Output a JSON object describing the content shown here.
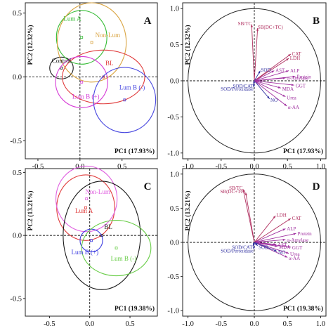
{
  "chart_data": [
    {
      "panel": "A",
      "type": "scatter",
      "xlabel": "PC1 (17.93%)",
      "ylabel": "PC2 (12.32%)",
      "xlim": [
        -0.65,
        0.92
      ],
      "ylim": [
        -0.64,
        0.58
      ],
      "xticks": [
        "-0.5",
        "0.0",
        "0.5"
      ],
      "xtick_values": [
        -0.5,
        0.0,
        0.5
      ],
      "yticks": [
        "-0.5",
        "0.0",
        "0.5"
      ],
      "ytick_values": [
        -0.5,
        0.0,
        0.5
      ],
      "groups": [
        {
          "name": "Control",
          "color": "#1a1a1a",
          "centroid": [
            -0.22,
            0.07
          ],
          "radii": [
            0.14,
            0.085
          ]
        },
        {
          "name": "Lum A",
          "color": "#33bb33",
          "centroid": [
            0.02,
            0.31
          ],
          "radii": [
            0.3,
            0.21
          ]
        },
        {
          "name": "Non-Lum",
          "color": "#d9a441",
          "centroid": [
            0.14,
            0.27
          ],
          "radii": [
            0.41,
            0.31
          ]
        },
        {
          "name": "BL",
          "color": "#e03c3c",
          "centroid": [
            0.28,
            0.0
          ],
          "radii": [
            0.49,
            0.21
          ]
        },
        {
          "name": "Lum B (+)",
          "color": "#d63cd6",
          "centroid": [
            0.02,
            -0.04
          ],
          "radii": [
            0.31,
            0.2
          ]
        },
        {
          "name": "Lum B (-)",
          "color": "#4a4ae0",
          "centroid": [
            0.53,
            -0.18
          ],
          "radii": [
            0.37,
            0.255
          ]
        }
      ],
      "labels": [
        {
          "text": "Lum A",
          "x": -0.09,
          "y": 0.44,
          "color": "#33bb33"
        },
        {
          "text": "Non-Lum",
          "x": 0.33,
          "y": 0.31,
          "color": "#d9a441"
        },
        {
          "text": "Control",
          "x": -0.22,
          "y": 0.11,
          "color": "#1a1a1a"
        },
        {
          "text": "BL",
          "x": 0.35,
          "y": 0.09,
          "color": "#e03c3c"
        },
        {
          "text": "Lum B (-)",
          "x": 0.62,
          "y": -0.1,
          "color": "#4a4ae0"
        },
        {
          "text": "Lum B (+)",
          "x": 0.07,
          "y": -0.17,
          "color": "#d63cd6"
        }
      ]
    },
    {
      "panel": "B",
      "type": "biplot",
      "xlabel": "PC1 (17.93%)",
      "ylabel": "PC2 (12.32%)",
      "xlim": [
        -1.08,
        1.08
      ],
      "ylim": [
        -1.08,
        1.08
      ],
      "xticks": [
        "-1.0",
        "-0.5",
        "0.0",
        "0.5",
        "1.0"
      ],
      "xtick_values": [
        -1.0,
        -0.5,
        0.0,
        0.5,
        1.0
      ],
      "yticks": [
        "-1.0",
        "-0.5",
        "0.0",
        "0.5",
        "1.0"
      ],
      "ytick_values": [
        -1.0,
        -0.5,
        0.0,
        0.5,
        1.0
      ],
      "circle_radius": 1.0,
      "vectors": [
        {
          "label": "SB/TC",
          "x": -0.04,
          "y": 0.78,
          "color": "#b03060"
        },
        {
          "label": "SB(DC+TC)",
          "x": 0.05,
          "y": 0.73,
          "color": "#b03060"
        },
        {
          "label": "CAT",
          "x": 0.55,
          "y": 0.37,
          "color": "#b03060"
        },
        {
          "label": "LDH",
          "x": 0.52,
          "y": 0.31,
          "color": "#b03060"
        },
        {
          "label": "ALP",
          "x": 0.52,
          "y": 0.14,
          "color": "#a030a0"
        },
        {
          "label": "Protein",
          "x": 0.62,
          "y": 0.06,
          "color": "#a030a0"
        },
        {
          "label": "α-Amylase",
          "x": 0.47,
          "y": 0.04,
          "color": "#a030a0"
        },
        {
          "label": "AST",
          "x": 0.3,
          "y": 0.14,
          "color": "#a030a0"
        },
        {
          "label": "SOD",
          "x": 0.09,
          "y": 0.14,
          "color": "#3030a0"
        },
        {
          "label": "GGT",
          "x": 0.6,
          "y": -0.06,
          "color": "#a030a0"
        },
        {
          "label": "MDA",
          "x": 0.4,
          "y": -0.1,
          "color": "#a030a0"
        },
        {
          "label": "SOD/CAT",
          "x": -0.01,
          "y": -0.05,
          "color": "#3030a0"
        },
        {
          "label": "SOD/Peroxidase",
          "x": -0.01,
          "y": -0.09,
          "color": "#3030a0"
        },
        {
          "label": "NO",
          "x": 0.23,
          "y": -0.25,
          "color": "#3030a0"
        },
        {
          "label": "Urea",
          "x": 0.47,
          "y": -0.22,
          "color": "#a030a0"
        },
        {
          "label": "α-AA",
          "x": 0.49,
          "y": -0.35,
          "color": "#a030a0"
        }
      ]
    },
    {
      "panel": "C",
      "type": "scatter",
      "xlabel": "PC1 (19.38%)",
      "ylabel": "PC2 (13.21%)",
      "xlim": [
        -0.8,
        0.84
      ],
      "ylim": [
        -0.64,
        0.53
      ],
      "xticks": [
        "-0.5",
        "0.0",
        "0.5"
      ],
      "xtick_values": [
        -0.5,
        0.0,
        0.5
      ],
      "yticks": [
        "-0.5",
        "0.0",
        "0.5"
      ],
      "ytick_values": [
        -0.5,
        0.0,
        0.5
      ],
      "groups": [
        {
          "name": "Lum A",
          "color": "#e03c3c",
          "centroid": [
            -0.05,
            0.22
          ],
          "radii": [
            0.36,
            0.26
          ]
        },
        {
          "name": "Non-Lum",
          "color": "#e060e0",
          "centroid": [
            -0.04,
            0.29
          ],
          "radii": [
            0.38,
            0.26
          ]
        },
        {
          "name": "BL",
          "color": "#1a1a1a",
          "centroid": [
            0.15,
            0.0
          ],
          "radii": [
            0.48,
            0.43
          ]
        },
        {
          "name": "Lum B (+)",
          "color": "#3c3ce0",
          "centroid": [
            0.02,
            -0.04
          ],
          "radii": [
            0.14,
            0.09
          ]
        },
        {
          "name": "Lum B (-)",
          "color": "#66cc44",
          "centroid": [
            0.33,
            -0.1
          ],
          "radii": [
            0.43,
            0.22
          ]
        }
      ],
      "labels": [
        {
          "text": "Non-Lum",
          "x": 0.1,
          "y": 0.33,
          "color": "#e060e0"
        },
        {
          "text": "Lum A",
          "x": -0.07,
          "y": 0.18,
          "color": "#e03c3c"
        },
        {
          "text": "BL",
          "x": 0.23,
          "y": 0.05,
          "color": "#1a1a1a"
        },
        {
          "text": "Lum B (+)",
          "x": -0.06,
          "y": -0.15,
          "color": "#3c3ce0"
        },
        {
          "text": "Lum B (-)",
          "x": 0.42,
          "y": -0.2,
          "color": "#66cc44"
        }
      ]
    },
    {
      "panel": "D",
      "type": "biplot",
      "xlabel": "PC1 (19.38%)",
      "ylabel": "PC2 (13.21%)",
      "xlim": [
        -1.08,
        1.08
      ],
      "ylim": [
        -1.08,
        1.08
      ],
      "xticks": [
        "-1.0",
        "-0.5",
        "0.0",
        "0.5",
        "1.0"
      ],
      "xtick_values": [
        -1.0,
        -0.5,
        0.0,
        0.5,
        1.0
      ],
      "yticks": [
        "-1.0",
        "-0.5",
        "0.0",
        "0.5",
        "1.0"
      ],
      "ytick_values": [
        -1.0,
        -0.5,
        0.0,
        0.5,
        1.0
      ],
      "circle_radius": 1.0,
      "vectors": [
        {
          "label": "SB/TC",
          "x": -0.17,
          "y": 0.78,
          "color": "#b03060"
        },
        {
          "label": "SB(DC+TC)",
          "x": -0.13,
          "y": 0.73,
          "color": "#b03060"
        },
        {
          "label": "LDH",
          "x": 0.32,
          "y": 0.39,
          "color": "#b03060"
        },
        {
          "label": "CAT",
          "x": 0.55,
          "y": 0.35,
          "color": "#b03060"
        },
        {
          "label": "ALP",
          "x": 0.47,
          "y": 0.2,
          "color": "#a030a0"
        },
        {
          "label": "Protein",
          "x": 0.63,
          "y": 0.13,
          "color": "#a030a0"
        },
        {
          "label": "α-Amylase",
          "x": 0.47,
          "y": 0.04,
          "color": "#a030a0"
        },
        {
          "label": "AST",
          "x": 0.33,
          "y": -0.03,
          "color": "#a030a0"
        },
        {
          "label": "MDA",
          "x": 0.35,
          "y": -0.06,
          "color": "#a030a0"
        },
        {
          "label": "GGT",
          "x": 0.55,
          "y": -0.07,
          "color": "#a030a0"
        },
        {
          "label": "Urea",
          "x": 0.52,
          "y": -0.16,
          "color": "#a030a0"
        },
        {
          "label": "α-AA",
          "x": 0.5,
          "y": -0.22,
          "color": "#a030a0"
        },
        {
          "label": "SOD",
          "x": 0.05,
          "y": -0.05,
          "color": "#3030a0"
        },
        {
          "label": "SOD/CAT",
          "x": -0.02,
          "y": -0.05,
          "color": "#3030a0"
        },
        {
          "label": "SOD/Peroxidase",
          "x": -0.01,
          "y": -0.1,
          "color": "#3030a0"
        },
        {
          "label": "NO",
          "x": 0.34,
          "y": -0.13,
          "color": "#3030a0"
        }
      ]
    }
  ]
}
